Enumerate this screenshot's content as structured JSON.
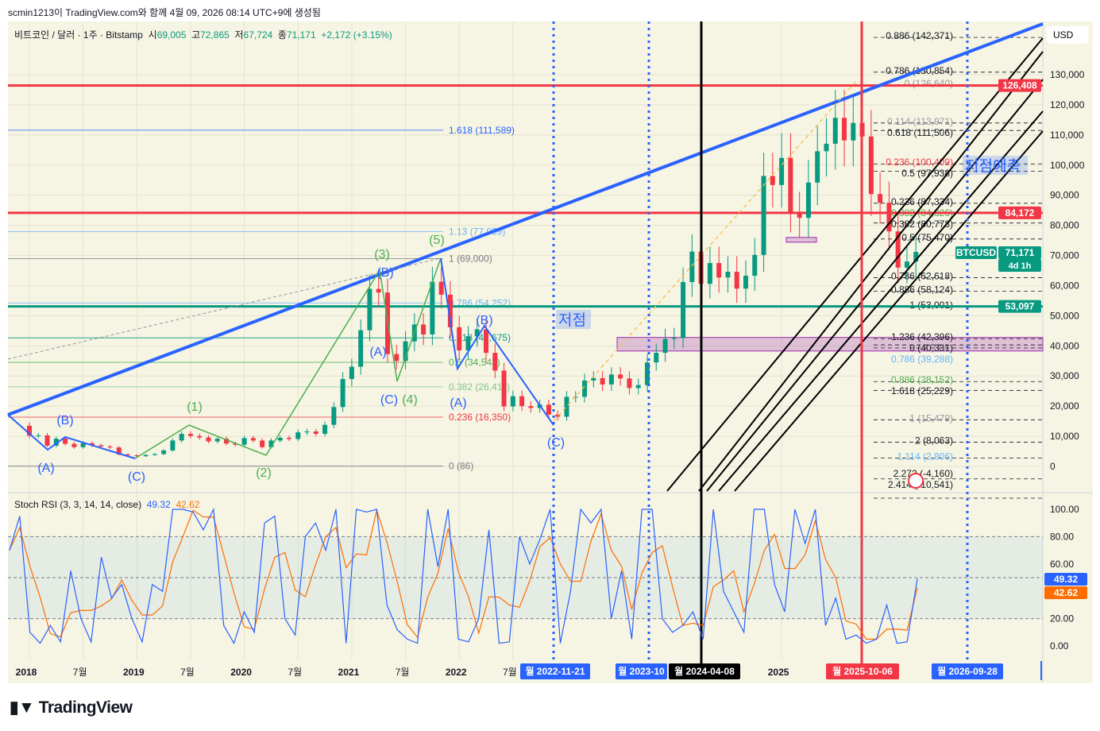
{
  "credit": "scmin1213이 TradingView.com와 함께 4월 09, 2026 08:14 UTC+9에 생성됨",
  "legend": {
    "symbol": "비트코인 / 달러 · 1주 · Bitstamp",
    "o_label": "시",
    "o": "69,005",
    "h_label": "고",
    "h": "72,865",
    "l_label": "저",
    "l": "67,724",
    "c_label": "종",
    "c": "71,171",
    "chg": "+2,172 (+3.15%)"
  },
  "currency": "USD",
  "rsi_legend": {
    "name": "Stoch RSI (3, 3, 14, 14, close)",
    "k": "49.32",
    "d": "42.62"
  },
  "price_badges": {
    "top": "126,408",
    "mid": "84,172",
    "sym": "BTCUSD",
    "last": "71,171",
    "countdown": "4d 1h",
    "green": "53,097",
    "k": "49.32",
    "d": "42.62"
  },
  "date_badges": [
    "월 2022-11-21",
    "월 2023-10",
    "월 2024-04-08",
    "월 2025-10-06",
    "월 2026-09-28"
  ],
  "annotation": "저점",
  "annotation2": "저점예측",
  "logo": "TradingView",
  "colors": {
    "up": "#089981",
    "down": "#f23645",
    "blue": "#2962ff",
    "red": "#f23645",
    "green": "#089981",
    "bg": "#f6f4e3"
  },
  "chart_data": {
    "type": "candlestick",
    "title": "비트코인 / 달러 · 1주 · Bitstamp",
    "start": "2018-01",
    "interval": "month (approx. of weekly)",
    "closes_k": [
      10.2,
      10.3,
      6.9,
      9.2,
      7.5,
      6.4,
      7.7,
      7.0,
      6.6,
      6.3,
      4.0,
      3.7,
      3.4,
      3.8,
      4.1,
      5.3,
      8.6,
      10.8,
      10.1,
      9.6,
      8.3,
      9.2,
      7.6,
      7.2,
      9.4,
      8.6,
      6.4,
      8.6,
      9.5,
      9.1,
      11.3,
      11.6,
      10.8,
      13.8,
      19.7,
      29.0,
      33.1,
      45.2,
      58.9,
      57.7,
      37.3,
      35.0,
      41.5,
      47.1,
      43.8,
      61.3,
      57.0,
      46.2,
      38.5,
      43.2,
      45.5,
      37.7,
      31.8,
      19.9,
      23.3,
      20.0,
      19.4,
      20.5,
      17.2,
      16.5,
      23.1,
      23.1,
      28.5,
      29.3,
      27.2,
      30.5,
      29.2,
      26.0,
      27.0,
      34.5,
      37.7,
      42.3,
      42.6,
      61.2,
      71.3,
      60.6,
      67.5,
      62.7,
      64.6,
      59.0,
      63.3,
      70.2,
      96.4,
      93.4,
      102.4,
      84.4,
      82.5,
      94.2,
      104.6,
      107.1,
      115.7,
      108.2,
      114.0,
      109.5,
      90.4,
      87.5,
      78.0,
      66.0,
      68.0,
      71.2
    ],
    "y_ticks": [
      "130,000",
      "120,000",
      "110,000",
      "100,000",
      "90,000",
      "80,000",
      "70,000",
      "60,000",
      "50,000",
      "40,000",
      "30,000",
      "20,000",
      "10,000",
      "0"
    ],
    "y_tick_values": [
      130000,
      120000,
      110000,
      100000,
      90000,
      80000,
      70000,
      60000,
      50000,
      40000,
      30000,
      20000,
      10000,
      0
    ],
    "x_ticks": [
      "2018",
      "7월",
      "2019",
      "7월",
      "2020",
      "7월",
      "2021",
      "7월",
      "2022",
      "7월",
      "2025"
    ],
    "x_tick_years": [
      2018,
      2018.5,
      2019,
      2019.5,
      2020,
      2020.5,
      2021,
      2021.5,
      2022,
      2022.5,
      2025
    ],
    "levels": {
      "red": [
        126408,
        84172
      ],
      "green": [
        53097
      ]
    },
    "fib_left": [
      {
        "t": "1.618 (111,589)",
        "p": 111589,
        "c": "#2962ff"
      },
      {
        "t": "1.13 (77,959)",
        "p": 77959,
        "c": "#64b5f6"
      },
      {
        "t": "1 (69,000)",
        "p": 69000,
        "c": "#787b86"
      },
      {
        "t": "0.786 (54,252)",
        "p": 54252,
        "c": "#64b5f6"
      },
      {
        "t": "0.618 (42,675)",
        "p": 42675,
        "c": "#089981"
      },
      {
        "t": "0.5 (34,543)",
        "p": 34543,
        "c": "#4caf50"
      },
      {
        "t": "0.382 (26,411)",
        "p": 26411,
        "c": "#81c784"
      },
      {
        "t": "0.236 (16,350)",
        "p": 16350,
        "c": "#f23645"
      },
      {
        "t": "0 (86)",
        "p": 86,
        "c": "#787b86"
      }
    ],
    "fib_right": [
      {
        "t": "0.886 (142,371)",
        "p": 142371,
        "c": "#131722"
      },
      {
        "t": "0.786 (130,854)",
        "p": 130854,
        "c": "#131722"
      },
      {
        "t": "0 (126,640)",
        "p": 126640,
        "c": "#9598a1"
      },
      {
        "t": "0.114 (113,971)",
        "p": 113971,
        "c": "#9598a1"
      },
      {
        "t": "0.618 (111,506)",
        "p": 111506,
        "c": "#131722"
      },
      {
        "t": "0.236 (100,409)",
        "p": 100409,
        "c": "#f23645"
      },
      {
        "t": "0.5 (97,938)",
        "p": 97938,
        "c": "#131722"
      },
      {
        "t": "0.236 (87,334)",
        "p": 87334,
        "c": "#131722"
      },
      {
        "t": "0.382 (84,326)",
        "p": 84326,
        "c": "#4caf50"
      },
      {
        "t": "0.382 (80,773)",
        "p": 80773,
        "c": "#131722"
      },
      {
        "t": "0.5 (75,470)",
        "p": 75470,
        "c": "#131722"
      },
      {
        "t": "0.786 (62,618)",
        "p": 62618,
        "c": "#131722"
      },
      {
        "t": "0.886 (58,124)",
        "p": 58124,
        "c": "#131722"
      },
      {
        "t": "1 (53,001)",
        "p": 53001,
        "c": "#131722"
      },
      {
        "t": "1.236 (42,396)",
        "p": 42396,
        "c": "#131722"
      },
      {
        "t": "0 (40,331)",
        "p": 40331,
        "c": "#131722"
      },
      {
        "t": "0.786 (39,288)",
        "p": 39288,
        "c": "#64b5f6"
      },
      {
        "t": "0.886 (28,152)",
        "p": 28152,
        "c": "#4caf50"
      },
      {
        "t": "1.618 (25,229)",
        "p": 25229,
        "c": "#131722"
      },
      {
        "t": "1 (15,479)",
        "p": 15479,
        "c": "#9598a1"
      },
      {
        "t": "2 (8,063)",
        "p": 8063,
        "c": "#131722"
      },
      {
        "t": "1.114 (2,806)",
        "p": 2806,
        "c": "#64b5f6"
      },
      {
        "t": "2.272 (-4,160)",
        "p": -4160,
        "c": "#131722"
      },
      {
        "t": "2.414 (-10,541)",
        "p": -10541,
        "c": "#131722"
      }
    ],
    "waves": [
      {
        "t": "(A)",
        "c": "#2962ff"
      },
      {
        "t": "(B)",
        "c": "#2962ff"
      },
      {
        "t": "(C)",
        "c": "#2962ff"
      },
      {
        "t": "(1)",
        "c": "#4caf50"
      },
      {
        "t": "(2)",
        "c": "#4caf50"
      },
      {
        "t": "(3)",
        "c": "#4caf50"
      },
      {
        "t": "(4)",
        "c": "#4caf50"
      },
      {
        "t": "(5)",
        "c": "#4caf50"
      },
      {
        "t": "(A)",
        "c": "#2962ff"
      },
      {
        "t": "(B)",
        "c": "#2962ff"
      },
      {
        "t": "(C)",
        "c": "#2962ff"
      },
      {
        "t": "(A)",
        "c": "#2962ff"
      },
      {
        "t": "(B)",
        "c": "#2962ff"
      },
      {
        "t": "(C)",
        "c": "#2962ff"
      }
    ],
    "rsi": {
      "k_last": 49.32,
      "d_last": 42.62,
      "y_ticks": [
        "100.00",
        "80.00",
        "60.00",
        "20.00",
        "0.00"
      ],
      "y_tick_values": [
        100,
        80,
        60,
        20,
        0
      ],
      "bands": [
        20,
        80
      ],
      "k": [
        70,
        95,
        10,
        2,
        15,
        3,
        55,
        20,
        3,
        65,
        35,
        45,
        20,
        3,
        45,
        40,
        100,
        100,
        98,
        85,
        100,
        15,
        2,
        25,
        10,
        90,
        95,
        20,
        8,
        80,
        90,
        70,
        100,
        2,
        100,
        98,
        100,
        30,
        12,
        5,
        2,
        100,
        58,
        100,
        5,
        3,
        20,
        85,
        2,
        3,
        80,
        60,
        78,
        100,
        2,
        40,
        100,
        90,
        100,
        20,
        55,
        5,
        100,
        100,
        20,
        10,
        15,
        25,
        5,
        100,
        40,
        25,
        10,
        100,
        100,
        45,
        25,
        100,
        75,
        100,
        15,
        35,
        5,
        8,
        2,
        5,
        30,
        2,
        3,
        49.32
      ]
    }
  }
}
